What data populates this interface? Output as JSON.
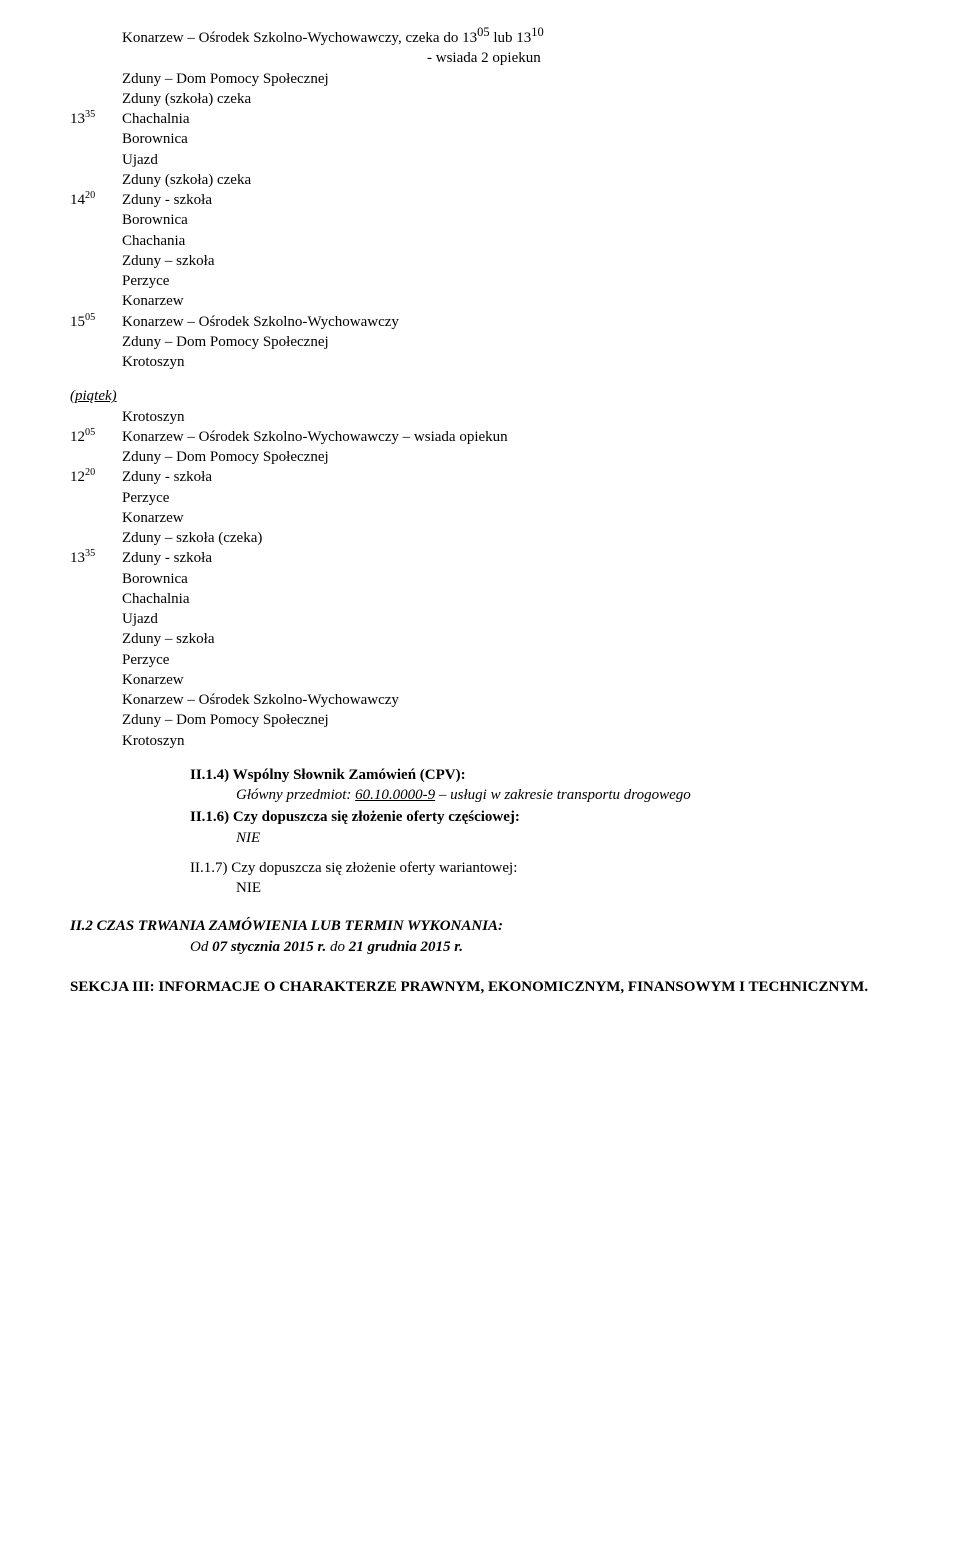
{
  "block1": {
    "rows": [
      {
        "time_base": "",
        "time_sup": "",
        "text": "Konarzew – Ośrodek Szkolno-Wychowawczy, czeka do 13",
        "sup1": "05",
        "mid": " lub 13",
        "sup2": "10"
      },
      {
        "time_base": "",
        "time_sup": "",
        "text": "- wsiada 2 opiekun",
        "indent": "wsiada"
      },
      {
        "time_base": "",
        "time_sup": "",
        "text": "Zduny – Dom Pomocy Społecznej"
      },
      {
        "time_base": "",
        "time_sup": "",
        "text": "Zduny (szkoła) czeka"
      },
      {
        "time_base": "13",
        "time_sup": "35",
        "text": "Chachalnia"
      },
      {
        "time_base": "",
        "time_sup": "",
        "text": "Borownica"
      },
      {
        "time_base": "",
        "time_sup": "",
        "text": "Ujazd"
      },
      {
        "time_base": "",
        "time_sup": "",
        "text": "Zduny (szkoła) czeka"
      },
      {
        "time_base": "14",
        "time_sup": "20",
        "text": "Zduny - szkoła"
      },
      {
        "time_base": "",
        "time_sup": "",
        "text": "Borownica"
      },
      {
        "time_base": "",
        "time_sup": "",
        "text": "Chachania"
      },
      {
        "time_base": "",
        "time_sup": "",
        "text": "Zduny – szkoła"
      },
      {
        "time_base": "",
        "time_sup": "",
        "text": "Perzyce"
      },
      {
        "time_base": "",
        "time_sup": "",
        "text": "Konarzew"
      },
      {
        "time_base": "15",
        "time_sup": "05",
        "text": "Konarzew – Ośrodek Szkolno-Wychowawczy"
      },
      {
        "time_base": "",
        "time_sup": "",
        "text": "Zduny – Dom Pomocy Społecznej"
      },
      {
        "time_base": "",
        "time_sup": "",
        "text": "Krotoszyn"
      }
    ]
  },
  "piatek_label": "(piątek)",
  "block2": {
    "rows": [
      {
        "time_base": "",
        "time_sup": "",
        "text": "Krotoszyn"
      },
      {
        "time_base": "12",
        "time_sup": "05",
        "text": "Konarzew – Ośrodek Szkolno-Wychowawczy – wsiada opiekun"
      },
      {
        "time_base": "",
        "time_sup": "",
        "text": "Zduny – Dom Pomocy Społecznej"
      },
      {
        "time_base": "12",
        "time_sup": "20",
        "text": "Zduny - szkoła"
      },
      {
        "time_base": "",
        "time_sup": "",
        "text": "Perzyce"
      },
      {
        "time_base": "",
        "time_sup": "",
        "text": "Konarzew"
      },
      {
        "time_base": "",
        "time_sup": "",
        "text": "Zduny – szkoła (czeka)"
      },
      {
        "time_base": "13",
        "time_sup": "35",
        "text": "Zduny - szkoła"
      },
      {
        "time_base": "",
        "time_sup": "",
        "text": "Borownica"
      },
      {
        "time_base": "",
        "time_sup": "",
        "text": "Chachalnia"
      },
      {
        "time_base": "",
        "time_sup": "",
        "text": "Ujazd"
      },
      {
        "time_base": "",
        "time_sup": "",
        "text": "Zduny – szkoła"
      },
      {
        "time_base": "",
        "time_sup": "",
        "text": "Perzyce"
      },
      {
        "time_base": "",
        "time_sup": "",
        "text": "Konarzew"
      },
      {
        "time_base": "",
        "time_sup": "",
        "text": "Konarzew – Ośrodek Szkolno-Wychowawczy"
      },
      {
        "time_base": "",
        "time_sup": "",
        "text": "Zduny – Dom Pomocy Społecznej"
      },
      {
        "time_base": "",
        "time_sup": "",
        "text": "Krotoszyn"
      }
    ]
  },
  "s14": {
    "hdr": "II.1.4) Wspólny Słownik Zamówień (CPV):",
    "pre": "Główny przedmiot: ",
    "code": "60.10.0000-9",
    "post": " – usługi w zakresie transportu drogowego"
  },
  "s16": {
    "hdr": "II.1.6) Czy dopuszcza się złożenie oferty częściowej:",
    "ans": "NIE"
  },
  "s17": {
    "hdr": "II.1.7) Czy dopuszcza się złożenie oferty wariantowej:",
    "ans": "NIE"
  },
  "czas": {
    "label": "II.2 CZAS TRWANIA ZAMÓWIENIA LUB TERMIN WYKONANIA:",
    "pre": "Od ",
    "d1": "07 stycznia 2015 r.",
    "mid": " do ",
    "d2": "21 grudnia 2015 r."
  },
  "sekcja": "SEKCJA III: INFORMACJE O CHARAKTERZE PRAWNYM, EKONOMICZNYM, FINANSOWYM I TECHNICZNYM."
}
